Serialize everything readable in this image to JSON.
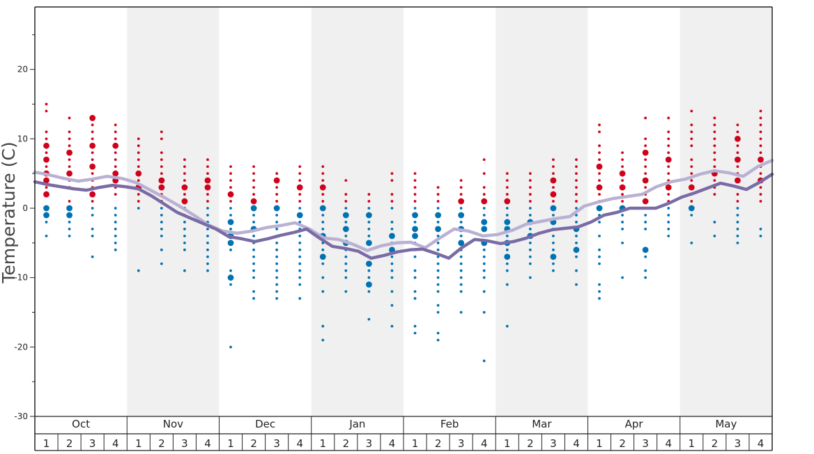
{
  "chart_data": {
    "type": "scatter",
    "ylabel": "Temperature (C)",
    "ylim": [
      -30,
      29
    ],
    "y_ticks": [
      20,
      10,
      0,
      -10,
      -20,
      -30
    ],
    "months": [
      "Oct",
      "Nov",
      "Dec",
      "Jan",
      "Feb",
      "Mar",
      "Apr",
      "May"
    ],
    "weeks": [
      "1",
      "2",
      "3",
      "4"
    ],
    "shaded_months": [
      "Nov",
      "Jan",
      "Mar",
      "May"
    ],
    "colors": {
      "above_zero": "#d0021b",
      "below_zero": "#0072b2",
      "upper_line": "#b9b1d3",
      "lower_line": "#7a6ba5",
      "shade": "#f0f0f0"
    },
    "series": [
      {
        "name": "",
        "kind": "line",
        "color": "#b9b1d3",
        "values": [
          5.2,
          4.8,
          4.3,
          3.9,
          4.2,
          4.6,
          4.3,
          3.7,
          2.6,
          1.5,
          0.3,
          -1.0,
          -2.4,
          -3.3,
          -3.6,
          -3.3,
          -2.8,
          -2.5,
          -2.1,
          -3.0,
          -4.3,
          -4.5,
          -5.2,
          -6.1,
          -5.4,
          -5.0,
          -4.9,
          -5.7,
          -4.3,
          -3.0,
          -3.3,
          -4.0,
          -3.8,
          -3.2,
          -2.3,
          -1.9,
          -1.5,
          -1.2,
          0.3,
          0.9,
          1.4,
          1.7,
          2.0,
          3.1,
          3.8,
          4.2,
          4.9,
          5.4,
          5.1,
          4.6,
          6.0,
          6.9
        ]
      },
      {
        "name": "",
        "kind": "line",
        "color": "#7a6ba5",
        "values": [
          3.8,
          3.4,
          3.1,
          2.8,
          2.6,
          3.0,
          3.3,
          3.1,
          2.8,
          1.8,
          0.6,
          -0.6,
          -1.4,
          -2.2,
          -3.0,
          -4.1,
          -4.4,
          -4.8,
          -4.4,
          -3.9,
          -3.5,
          -3.0,
          -4.3,
          -5.5,
          -5.8,
          -6.2,
          -7.2,
          -6.8,
          -6.3,
          -6.0,
          -5.9,
          -6.5,
          -7.2,
          -5.7,
          -4.5,
          -4.7,
          -5.1,
          -4.8,
          -4.3,
          -3.6,
          -3.1,
          -2.9,
          -2.7,
          -2.0,
          -1.0,
          -0.6,
          0.0,
          0.0,
          0.0,
          0.7,
          1.6,
          2.2,
          2.9,
          3.6,
          3.2,
          2.7,
          3.7,
          4.9
        ]
      },
      {
        "name": "",
        "kind": "dots",
        "weeks": [
          {
            "label": "Oct 1",
            "big": [
              9,
              7,
              5,
              2,
              -1,
              0,
              4
            ],
            "small": [
              15,
              14,
              11,
              10,
              8,
              6,
              3,
              -2,
              -4
            ]
          },
          {
            "label": "Oct 2",
            "big": [
              8,
              5,
              0,
              -1
            ],
            "small": [
              13,
              11,
              10,
              9,
              7,
              6,
              4,
              3,
              1,
              -2,
              -3,
              -4
            ]
          },
          {
            "label": "Oct 3",
            "big": [
              13,
              9,
              6,
              2
            ],
            "small": [
              12,
              11,
              10,
              8,
              7,
              5,
              4,
              3,
              1,
              0,
              -1,
              -3,
              -4,
              -7
            ]
          },
          {
            "label": "Oct 4",
            "big": [
              9,
              5,
              4
            ],
            "small": [
              12,
              11,
              10,
              8,
              7,
              6,
              3,
              2,
              0,
              -1,
              -2,
              -3,
              -4,
              -5,
              -6
            ]
          },
          {
            "label": "Nov 1",
            "big": [
              5,
              3
            ],
            "small": [
              10,
              9,
              8,
              7,
              6,
              4,
              2,
              1,
              0,
              -9
            ]
          },
          {
            "label": "Nov 2",
            "big": [
              4,
              3
            ],
            "small": [
              11,
              10,
              8,
              7,
              6,
              5,
              2,
              1,
              0,
              -1,
              -2,
              -3,
              -4,
              -6,
              -8
            ]
          },
          {
            "label": "Nov 3",
            "big": [
              3,
              1
            ],
            "small": [
              7,
              6,
              5,
              4,
              2,
              0,
              -1,
              -2,
              -3,
              -4,
              -5,
              -6,
              -9
            ]
          },
          {
            "label": "Nov 4",
            "big": [
              4,
              3
            ],
            "small": [
              7,
              6,
              5,
              2,
              1,
              0,
              -1,
              -2,
              -3,
              -4,
              -5,
              -6,
              -7,
              -8,
              -9
            ]
          },
          {
            "label": "Dec 1",
            "big": [
              2,
              -2,
              -4,
              -5,
              -10
            ],
            "small": [
              6,
              5,
              4,
              3,
              1,
              0,
              -1,
              -3,
              -6,
              -9,
              -11,
              -20
            ]
          },
          {
            "label": "Dec 2",
            "big": [
              1,
              0,
              -3
            ],
            "small": [
              6,
              5,
              4,
              3,
              2,
              -1,
              -2,
              -4,
              -5,
              -6,
              -7,
              -8,
              -9,
              -10,
              -12,
              -13
            ]
          },
          {
            "label": "Dec 3",
            "big": [
              4,
              0
            ],
            "small": [
              5,
              3,
              2,
              1,
              -1,
              -2,
              -3,
              -4,
              -5,
              -6,
              -7,
              -8,
              -9,
              -10,
              -11,
              -12,
              -13
            ]
          },
          {
            "label": "Dec 4",
            "big": [
              3,
              -1
            ],
            "small": [
              6,
              5,
              4,
              2,
              1,
              0,
              -2,
              -3,
              -4,
              -5,
              -6,
              -7,
              -8,
              -9,
              -10,
              -11,
              -13
            ]
          },
          {
            "label": "Jan 1",
            "big": [
              3,
              0,
              -4,
              -7
            ],
            "small": [
              6,
              5,
              4,
              2,
              1,
              -1,
              -2,
              -3,
              -5,
              -6,
              -8,
              -10,
              -12,
              -17,
              -19
            ]
          },
          {
            "label": "Jan 2",
            "big": [
              -1,
              -3,
              -5
            ],
            "small": [
              4,
              2,
              1,
              0,
              -2,
              -4,
              -6,
              -7,
              -8,
              -9,
              -10,
              -12
            ]
          },
          {
            "label": "Jan 3",
            "big": [
              -1,
              -5,
              -8,
              -11
            ],
            "small": [
              2,
              1,
              0,
              -2,
              -3,
              -4,
              -6,
              -7,
              -9,
              -10,
              -12,
              -16
            ]
          },
          {
            "label": "Jan 4",
            "big": [
              -4,
              -6
            ],
            "small": [
              5,
              4,
              2,
              1,
              0,
              -2,
              -3,
              -5,
              -7,
              -8,
              -9,
              -10,
              -12,
              -14,
              -17
            ]
          },
          {
            "label": "Feb 1",
            "big": [
              -1,
              -3,
              -4
            ],
            "small": [
              5,
              4,
              3,
              2,
              1,
              0,
              -2,
              -5,
              -6,
              -7,
              -9,
              -10,
              -12,
              -13,
              -17,
              -18
            ]
          },
          {
            "label": "Feb 2",
            "big": [
              -1,
              -3
            ],
            "small": [
              3,
              2,
              1,
              0,
              -2,
              -4,
              -5,
              -6,
              -7,
              -8,
              -9,
              -10,
              -11,
              -12,
              -14,
              -15,
              -18,
              -19
            ]
          },
          {
            "label": "Feb 3",
            "big": [
              1,
              -1,
              -3,
              -5
            ],
            "small": [
              4,
              3,
              2,
              0,
              -2,
              -4,
              -6,
              -7,
              -8,
              -9,
              -10,
              -11,
              -12,
              -15
            ]
          },
          {
            "label": "Feb 4",
            "big": [
              1,
              -2,
              -3,
              -5
            ],
            "small": [
              7,
              5,
              3,
              2,
              0,
              -1,
              -4,
              -6,
              -7,
              -8,
              -9,
              -10,
              -12,
              -15,
              -22
            ]
          },
          {
            "label": "Mar 1",
            "big": [
              1,
              -2,
              -3,
              -5,
              -7
            ],
            "small": [
              5,
              4,
              3,
              2,
              0,
              -1,
              -4,
              -6,
              -8,
              -9,
              -11,
              -17
            ]
          },
          {
            "label": "Mar 2",
            "big": [
              -2,
              -4
            ],
            "small": [
              5,
              4,
              3,
              2,
              1,
              0,
              -1,
              -3,
              -5,
              -6,
              -7,
              -8,
              -10
            ]
          },
          {
            "label": "Mar 3",
            "big": [
              4,
              2,
              0,
              -2,
              -7
            ],
            "small": [
              7,
              6,
              5,
              3,
              1,
              -1,
              -3,
              -4,
              -5,
              -6,
              -8,
              -9
            ]
          },
          {
            "label": "Mar 4",
            "big": [
              -3,
              -6
            ],
            "small": [
              7,
              6,
              5,
              4,
              3,
              2,
              1,
              0,
              -1,
              -2,
              -4,
              -5,
              -7,
              -9,
              -11
            ]
          },
          {
            "label": "Apr 1",
            "big": [
              6,
              3,
              0
            ],
            "small": [
              12,
              11,
              9,
              8,
              7,
              5,
              4,
              2,
              1,
              -1,
              -2,
              -4,
              -6,
              -7,
              -8,
              -11,
              -12,
              -13
            ]
          },
          {
            "label": "Apr 2",
            "big": [
              5,
              3,
              0
            ],
            "small": [
              8,
              7,
              6,
              4,
              2,
              1,
              -1,
              -2,
              -3,
              -5,
              -10
            ]
          },
          {
            "label": "Apr 3",
            "big": [
              8,
              4,
              1,
              -6
            ],
            "small": [
              13,
              10,
              9,
              7,
              6,
              5,
              3,
              2,
              0,
              -1,
              -2,
              -3,
              -7,
              -9,
              -10
            ]
          },
          {
            "label": "Apr 4",
            "big": [
              7,
              3
            ],
            "small": [
              13,
              11,
              10,
              9,
              8,
              6,
              5,
              4,
              2,
              1,
              0,
              -1,
              -2,
              -3,
              -4
            ]
          },
          {
            "label": "May 1",
            "big": [
              3,
              0
            ],
            "small": [
              14,
              12,
              11,
              10,
              9,
              7,
              6,
              5,
              4,
              2,
              1,
              -1,
              -5
            ]
          },
          {
            "label": "May 2",
            "big": [
              5
            ],
            "small": [
              13,
              12,
              11,
              10,
              9,
              8,
              7,
              6,
              4,
              3,
              2,
              -2,
              -4
            ]
          },
          {
            "label": "May 3",
            "big": [
              10,
              7,
              4
            ],
            "small": [
              12,
              11,
              9,
              8,
              6,
              5,
              3,
              2,
              1,
              0,
              -1,
              -2,
              -3,
              -4,
              -5
            ]
          },
          {
            "label": "May 4",
            "big": [
              7,
              4
            ],
            "small": [
              14,
              13,
              12,
              11,
              10,
              9,
              8,
              6,
              5,
              3,
              2,
              1,
              -3,
              -4
            ]
          }
        ]
      }
    ]
  }
}
